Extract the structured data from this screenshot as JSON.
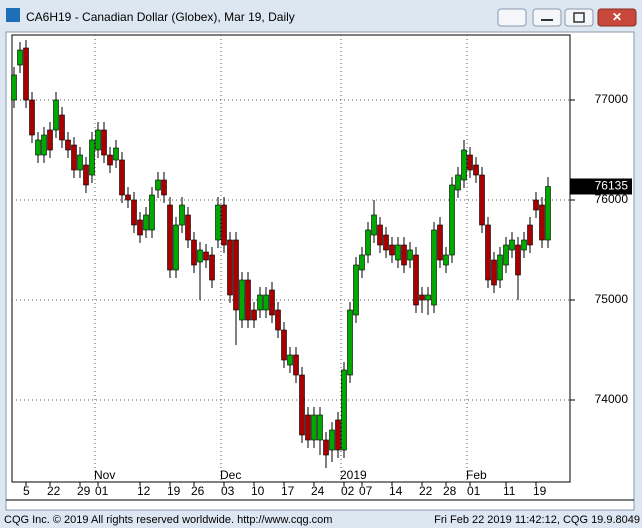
{
  "window": {
    "title": "CA6H19 - Canadian Dollar (Globex), Mar 19, Daily"
  },
  "footer": {
    "left": "CQG Inc. © 2019 All rights reserved worldwide. http://www.cqg.com",
    "right": "Fri Feb 22 2019 11:42:12, CQG 19.9.8049"
  },
  "chart_data": {
    "type": "candlestick",
    "up_color": "#00a800",
    "down_color": "#a80000",
    "grid": true,
    "ylim": [
      73180,
      77650
    ],
    "yticks": [
      74000,
      75000,
      76000,
      77000
    ],
    "categories": [
      null,
      null,
      "5",
      null,
      null,
      null,
      "22",
      null,
      null,
      null,
      null,
      "29",
      null,
      null,
      "01",
      null,
      null,
      null,
      null,
      null,
      null,
      "12",
      null,
      null,
      null,
      null,
      "19",
      null,
      null,
      null,
      "26",
      null,
      null,
      null,
      null,
      "03",
      null,
      null,
      null,
      null,
      "10",
      null,
      null,
      null,
      null,
      "17",
      null,
      null,
      null,
      null,
      "24",
      null,
      null,
      null,
      null,
      "02",
      null,
      null,
      "07",
      null,
      null,
      null,
      null,
      "14",
      null,
      null,
      null,
      null,
      "22",
      null,
      null,
      null,
      "28",
      null,
      null,
      null,
      "01",
      null,
      null,
      null,
      null,
      null,
      "11",
      null,
      null,
      null,
      null,
      "19",
      null,
      null
    ],
    "months": [
      null,
      null,
      null,
      null,
      null,
      null,
      null,
      null,
      null,
      null,
      null,
      null,
      null,
      null,
      "Nov",
      null,
      null,
      null,
      null,
      null,
      null,
      null,
      null,
      null,
      null,
      null,
      null,
      null,
      null,
      null,
      null,
      null,
      null,
      null,
      null,
      "Dec",
      null,
      null,
      null,
      null,
      null,
      null,
      null,
      null,
      null,
      null,
      null,
      null,
      null,
      null,
      null,
      null,
      null,
      null,
      null,
      "2019",
      null,
      null,
      null,
      null,
      null,
      null,
      null,
      null,
      null,
      null,
      null,
      null,
      null,
      null,
      null,
      null,
      null,
      null,
      null,
      null,
      "Feb",
      null,
      null,
      null,
      null,
      null,
      null,
      null,
      null,
      null,
      null,
      null,
      null,
      null
    ],
    "open": [
      77000,
      77350,
      77520,
      77000,
      76450,
      76450,
      76700,
      76700,
      76850,
      76600,
      76550,
      76300,
      76350,
      76250,
      76500,
      76700,
      76450,
      76400,
      76400,
      76050,
      76000,
      75800,
      75700,
      75700,
      76100,
      76200,
      75950,
      75300,
      75750,
      75850,
      75600,
      75380,
      75480,
      75450,
      75600,
      75950,
      75600,
      75600,
      74800,
      75200,
      74900,
      74900,
      74900,
      75100,
      74900,
      74700,
      74350,
      74450,
      74250,
      73850,
      73600,
      73600,
      73600,
      73500,
      73800,
      73500,
      74250,
      74850,
      75300,
      75450,
      75650,
      75750,
      75650,
      75550,
      75400,
      75550,
      75400,
      75450,
      75050,
      75000,
      74950,
      75750,
      75350,
      75450,
      76100,
      76200,
      76450,
      76350,
      76250,
      75750,
      75400,
      75200,
      75350,
      75500,
      75550,
      75500,
      75750,
      76000,
      75950,
      75600
    ],
    "high": [
      77330,
      77580,
      77600,
      77080,
      76680,
      76730,
      76780,
      77080,
      76930,
      76680,
      76630,
      76530,
      76430,
      76680,
      76780,
      76780,
      76530,
      76600,
      76480,
      76130,
      76080,
      75880,
      75930,
      76130,
      76280,
      76280,
      76030,
      75830,
      76030,
      75930,
      75680,
      75580,
      75560,
      75530,
      76030,
      76030,
      75680,
      75680,
      75280,
      75280,
      74980,
      75130,
      75130,
      75180,
      74980,
      74780,
      74530,
      74530,
      74330,
      73930,
      73930,
      73930,
      73680,
      73780,
      73880,
      74380,
      74980,
      75430,
      75530,
      75780,
      76000,
      75830,
      75730,
      75630,
      75630,
      75630,
      75580,
      75530,
      75130,
      75130,
      75780,
      75830,
      75530,
      76230,
      76330,
      76600,
      76530,
      76430,
      76330,
      75830,
      75480,
      75530,
      75630,
      75680,
      75630,
      75680,
      75830,
      76080,
      76030,
      76230
    ],
    "low": [
      76920,
      77270,
      76920,
      76570,
      76370,
      76370,
      76420,
      76620,
      76520,
      76420,
      76220,
      76220,
      76070,
      76170,
      76420,
      76370,
      76270,
      76320,
      75970,
      75920,
      75670,
      75570,
      75620,
      75620,
      76020,
      75970,
      75220,
      75220,
      75670,
      75520,
      75270,
      75000,
      75320,
      75120,
      75520,
      75470,
      74970,
      74550,
      74720,
      74720,
      74720,
      74820,
      74820,
      74770,
      74620,
      74320,
      74270,
      74170,
      73570,
      73520,
      73520,
      73450,
      73320,
      73380,
      73420,
      73420,
      74170,
      74770,
      75220,
      75370,
      75570,
      75470,
      75420,
      75370,
      75320,
      75270,
      75320,
      74870,
      74870,
      74850,
      74870,
      75320,
      75270,
      75370,
      76020,
      76120,
      76220,
      76170,
      75670,
      75120,
      75070,
      75120,
      75270,
      75420,
      75000,
      75420,
      75470,
      75820,
      75520,
      75520
    ],
    "close": [
      77250,
      77500,
      77000,
      76650,
      76600,
      76650,
      76500,
      77000,
      76600,
      76500,
      76300,
      76450,
      76150,
      76600,
      76700,
      76450,
      76350,
      76520,
      76050,
      76000,
      75750,
      75650,
      75850,
      76050,
      76200,
      76050,
      75300,
      75750,
      75950,
      75600,
      75350,
      75500,
      75400,
      75200,
      75950,
      75550,
      75050,
      74900,
      75200,
      74800,
      74800,
      75050,
      75050,
      74850,
      74700,
      74400,
      74450,
      74250,
      73650,
      73600,
      73850,
      73850,
      73450,
      73700,
      73500,
      74300,
      74900,
      75350,
      75450,
      75700,
      75850,
      75550,
      75500,
      75450,
      75550,
      75350,
      75500,
      74950,
      75000,
      75050,
      75700,
      75400,
      75450,
      76150,
      76250,
      76500,
      76300,
      76250,
      75750,
      75200,
      75150,
      75450,
      75550,
      75600,
      75250,
      75600,
      75550,
      75900,
      75600,
      76135
    ]
  }
}
